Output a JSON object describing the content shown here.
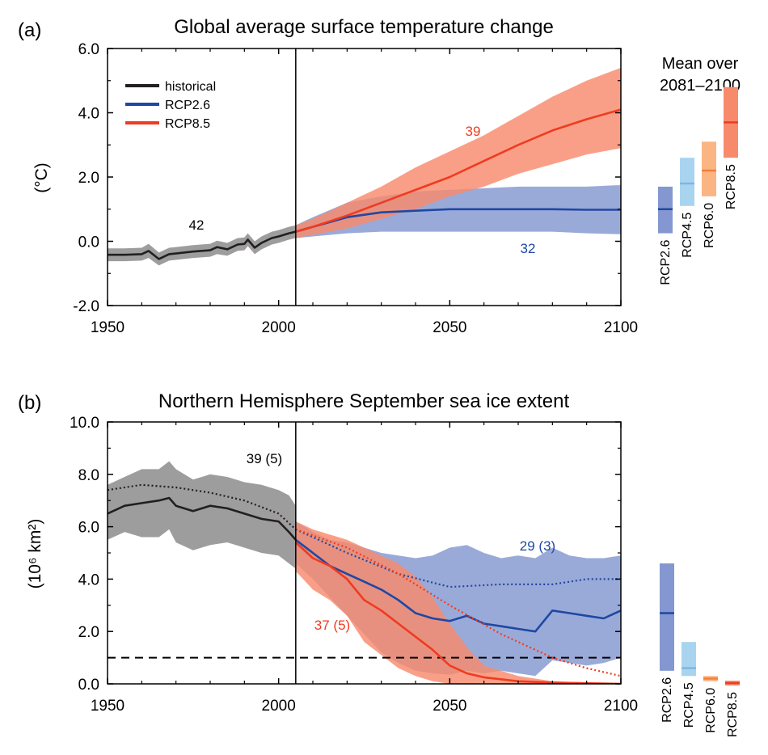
{
  "colors": {
    "historical": "#231f20",
    "historical_band": "#9d9d9d",
    "rcp26": "#1f48a3",
    "rcp26_band": "#8497d0",
    "rcp45_band": "#a9d4f0",
    "rcp45": "#7fb6e0",
    "rcp60_band": "#fbb583",
    "rcp60": "#f0813a",
    "rcp85": "#f03b20",
    "rcp85_band": "#f88a6c",
    "overlap_band": "#9a6070"
  },
  "chart_data": [
    {
      "panel": "(a)",
      "type": "line",
      "title": "Global average surface temperature change",
      "xlabel": "",
      "ylabel": "(°C)",
      "xlim": [
        1950,
        2100
      ],
      "ylim": [
        -2.0,
        6.0
      ],
      "x_ticks": [
        "1950",
        "2000",
        "2050",
        "2100"
      ],
      "y_ticks": [
        "-2.0",
        "0.0",
        "2.0",
        "4.0",
        "6.0"
      ],
      "reference_line_x": 2005,
      "legend": {
        "position": "top-left",
        "entries": [
          "historical",
          "RCP2.6",
          "RCP8.5"
        ]
      },
      "annotations": [
        "42",
        "39",
        "32"
      ],
      "series": [
        {
          "name": "historical",
          "x": [
            1950,
            1955,
            1960,
            1962,
            1965,
            1968,
            1970,
            1975,
            1980,
            1982,
            1985,
            1988,
            1990,
            1991,
            1993,
            1995,
            1998,
            2000,
            2003,
            2005
          ],
          "y": [
            -0.42,
            -0.42,
            -0.4,
            -0.3,
            -0.55,
            -0.4,
            -0.38,
            -0.32,
            -0.28,
            -0.18,
            -0.25,
            -0.1,
            -0.08,
            0.05,
            -0.2,
            -0.05,
            0.1,
            0.15,
            0.25,
            0.3
          ],
          "lower": [
            -0.62,
            -0.62,
            -0.6,
            -0.52,
            -0.75,
            -0.6,
            -0.58,
            -0.52,
            -0.48,
            -0.4,
            -0.45,
            -0.3,
            -0.28,
            -0.15,
            -0.4,
            -0.25,
            -0.1,
            -0.05,
            0.05,
            0.1
          ],
          "upper": [
            -0.22,
            -0.22,
            -0.2,
            -0.08,
            -0.35,
            -0.2,
            -0.18,
            -0.12,
            -0.08,
            0.02,
            -0.05,
            0.1,
            0.12,
            0.25,
            0.0,
            0.15,
            0.3,
            0.35,
            0.45,
            0.5
          ]
        },
        {
          "name": "RCP2.6",
          "x": [
            2005,
            2010,
            2020,
            2030,
            2040,
            2050,
            2060,
            2070,
            2080,
            2090,
            2100
          ],
          "y": [
            0.3,
            0.45,
            0.75,
            0.9,
            0.95,
            1.0,
            1.0,
            1.0,
            1.0,
            0.98,
            0.98
          ],
          "lower": [
            0.1,
            0.15,
            0.25,
            0.3,
            0.3,
            0.3,
            0.3,
            0.3,
            0.3,
            0.25,
            0.22
          ],
          "upper": [
            0.5,
            0.75,
            1.2,
            1.4,
            1.55,
            1.6,
            1.65,
            1.7,
            1.7,
            1.7,
            1.75
          ]
        },
        {
          "name": "RCP8.5",
          "x": [
            2005,
            2010,
            2020,
            2030,
            2040,
            2050,
            2060,
            2070,
            2080,
            2090,
            2100
          ],
          "y": [
            0.3,
            0.45,
            0.8,
            1.2,
            1.6,
            2.0,
            2.5,
            3.0,
            3.45,
            3.8,
            4.1
          ],
          "lower": [
            0.1,
            0.2,
            0.4,
            0.7,
            1.0,
            1.4,
            1.7,
            2.1,
            2.4,
            2.7,
            2.9
          ],
          "upper": [
            0.5,
            0.7,
            1.2,
            1.7,
            2.3,
            2.8,
            3.3,
            3.9,
            4.5,
            5.0,
            5.4
          ]
        }
      ],
      "side_bars": {
        "title": [
          "Mean over",
          "2081–2100"
        ],
        "bars": [
          {
            "label": "RCP2.6",
            "low": 0.25,
            "mean": 1.0,
            "high": 1.7
          },
          {
            "label": "RCP4.5",
            "low": 1.1,
            "mean": 1.8,
            "high": 2.6
          },
          {
            "label": "RCP6.0",
            "low": 1.4,
            "mean": 2.2,
            "high": 3.1
          },
          {
            "label": "RCP8.5",
            "low": 2.6,
            "mean": 3.7,
            "high": 4.8
          }
        ]
      }
    },
    {
      "panel": "(b)",
      "type": "line",
      "title": "Northern Hemisphere September sea ice extent",
      "xlabel": "",
      "ylabel": "(10⁶ km²)",
      "xlim": [
        1950,
        2100
      ],
      "ylim": [
        0.0,
        10.0
      ],
      "x_ticks": [
        "1950",
        "2000",
        "2050",
        "2100"
      ],
      "y_ticks": [
        "0.0",
        "2.0",
        "4.0",
        "6.0",
        "8.0",
        "10.0"
      ],
      "reference_line_x": 2005,
      "threshold_y": 1.0,
      "annotations": [
        "39 (5)",
        "29 (3)",
        "37 (5)"
      ],
      "series": [
        {
          "name": "historical",
          "x": [
            1950,
            1955,
            1960,
            1965,
            1968,
            1970,
            1975,
            1980,
            1985,
            1990,
            1995,
            2000,
            2003,
            2005
          ],
          "y": [
            6.5,
            6.8,
            6.9,
            7.0,
            7.1,
            6.8,
            6.6,
            6.8,
            6.7,
            6.5,
            6.3,
            6.2,
            5.8,
            5.5
          ],
          "lower": [
            5.5,
            5.8,
            5.6,
            5.6,
            5.9,
            5.4,
            5.1,
            5.3,
            5.4,
            5.2,
            5.0,
            4.9,
            4.6,
            4.4
          ],
          "upper": [
            7.6,
            7.9,
            8.2,
            8.2,
            8.5,
            8.2,
            7.8,
            8.0,
            7.9,
            7.7,
            7.6,
            7.4,
            7.2,
            6.8
          ]
        },
        {
          "name": "historical (mean, dotted)",
          "x": [
            1950,
            1960,
            1970,
            1980,
            1990,
            2000,
            2005
          ],
          "y": [
            7.4,
            7.6,
            7.5,
            7.3,
            7.0,
            6.5,
            5.9
          ]
        },
        {
          "name": "RCP2.6",
          "x": [
            2005,
            2010,
            2015,
            2020,
            2025,
            2030,
            2035,
            2040,
            2045,
            2050,
            2055,
            2060,
            2065,
            2070,
            2075,
            2080,
            2085,
            2090,
            2095,
            2100
          ],
          "y": [
            5.5,
            5.0,
            4.5,
            4.2,
            3.9,
            3.6,
            3.2,
            2.7,
            2.5,
            2.4,
            2.6,
            2.3,
            2.2,
            2.1,
            2.0,
            2.8,
            2.7,
            2.6,
            2.5,
            2.8
          ],
          "lower": [
            4.6,
            4.0,
            3.3,
            2.6,
            1.9,
            1.2,
            0.8,
            0.5,
            0.4,
            0.35,
            0.5,
            0.4,
            0.5,
            0.4,
            0.3,
            0.9,
            0.8,
            0.7,
            0.8,
            1.0
          ],
          "upper": [
            6.2,
            5.8,
            5.5,
            5.4,
            5.2,
            5.0,
            4.9,
            4.8,
            4.9,
            5.2,
            5.3,
            5.0,
            4.8,
            4.9,
            4.8,
            5.2,
            4.9,
            4.8,
            4.8,
            4.9
          ]
        },
        {
          "name": "RCP2.6 (dotted)",
          "x": [
            2005,
            2020,
            2035,
            2050,
            2065,
            2080,
            2090,
            2100
          ],
          "y": [
            5.9,
            5.0,
            4.2,
            3.7,
            3.8,
            3.8,
            4.0,
            4.0
          ]
        },
        {
          "name": "RCP8.5",
          "x": [
            2005,
            2010,
            2015,
            2020,
            2025,
            2030,
            2035,
            2040,
            2045,
            2050,
            2055,
            2060,
            2070,
            2080,
            2100
          ],
          "y": [
            5.4,
            4.8,
            4.5,
            4.0,
            3.2,
            2.8,
            2.3,
            1.8,
            1.3,
            0.7,
            0.4,
            0.25,
            0.1,
            0.05,
            0.0
          ],
          "lower": [
            4.3,
            3.6,
            3.2,
            2.6,
            1.6,
            1.1,
            0.6,
            0.3,
            0.1,
            0.0,
            0.0,
            0.0,
            0.0,
            0.0,
            0.0
          ],
          "upper": [
            6.2,
            5.9,
            5.7,
            5.5,
            5.2,
            4.9,
            4.6,
            4.1,
            3.3,
            2.3,
            1.4,
            0.7,
            0.3,
            0.1,
            0.0
          ]
        },
        {
          "name": "RCP8.5 (dotted)",
          "x": [
            2005,
            2020,
            2035,
            2050,
            2065,
            2080,
            2090,
            2100
          ],
          "y": [
            5.9,
            5.2,
            4.2,
            3.0,
            1.9,
            1.0,
            0.6,
            0.3
          ]
        }
      ],
      "side_bars": {
        "bars": [
          {
            "label": "RCP2.6",
            "low": 0.5,
            "mean": 2.7,
            "high": 4.6
          },
          {
            "label": "RCP4.5",
            "low": 0.3,
            "mean": 0.6,
            "high": 1.6
          },
          {
            "label": "RCP6.0",
            "low": 0.1,
            "mean": 0.2,
            "high": 0.3
          },
          {
            "label": "RCP8.5",
            "low": 0.0,
            "mean": 0.03,
            "high": 0.06
          }
        ]
      }
    }
  ]
}
